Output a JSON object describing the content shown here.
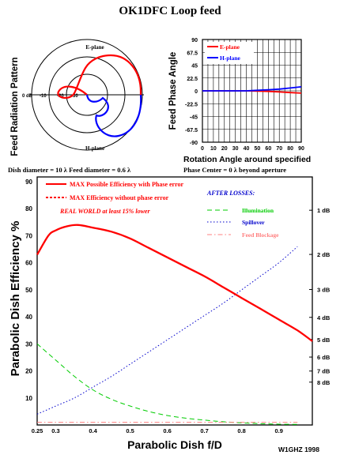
{
  "title": "OK1DFC Loop feed",
  "polar": {
    "ylabel": "Feed Radiation Pattern",
    "e_label": "E-plane",
    "h_label": "H-plane",
    "ring_labels": [
      "0 dB",
      "-10",
      "-20",
      "-30"
    ],
    "caption": "Dish diameter = 10 λ    Feed diameter = 0.6 λ"
  },
  "phase": {
    "ylabel": "Feed Phase Angle",
    "xlabel": "Rotation Angle around specified",
    "caption": "Phase Center = 0 λ beyond aperture",
    "y_ticks": [
      "90",
      "67.5",
      "45",
      "22.5",
      "0",
      "-22.5",
      "-45",
      "-67.5",
      "-90"
    ],
    "x_ticks": [
      "0",
      "10",
      "20",
      "30",
      "40",
      "50",
      "60",
      "70",
      "80",
      "90"
    ],
    "legend": [
      "E-plane",
      "H-plane"
    ]
  },
  "main": {
    "legend_max": "MAX Possible Efficiency with Phase error",
    "legend_max_nophase": "MAX Efficiency without phase error",
    "real_world": "REAL WORLD at least 15% lower",
    "after_losses": "AFTER LOSSES:",
    "losses": [
      "Illumination",
      "Spillover",
      "Feed Blockage"
    ],
    "ylabel": "Parabolic Dish Efficiency %",
    "xlabel": "Parabolic Dish f/D",
    "credit": "W1GHZ 1998",
    "y_ticks": [
      "90",
      "80",
      "70",
      "60",
      "50",
      "40",
      "30",
      "20",
      "10"
    ],
    "x_ticks": [
      "0.25",
      "0.3",
      "0.4",
      "0.5",
      "0.6",
      "0.7",
      "0.8",
      "0.9"
    ],
    "db_ticks": [
      "1 dB",
      "2 dB",
      "3 dB",
      "4 dB",
      "5 dB",
      "6 dB",
      "7 dB",
      "8 dB"
    ]
  },
  "colors": {
    "max": "#ff0000",
    "illumination": "#00cc00",
    "spillover": "#0000cc",
    "blockage": "#ff8080",
    "eplane": "#ff0000",
    "hplane": "#0000ff"
  },
  "chart_data": [
    {
      "type": "line",
      "title": "Feed Radiation Pattern",
      "polar": true,
      "series": [
        {
          "name": "E-plane",
          "angle_deg": [
            0,
            30,
            60,
            90,
            120,
            150,
            180
          ],
          "db": [
            0,
            -2,
            -6,
            -11,
            -17,
            -24,
            -30
          ]
        },
        {
          "name": "H-plane",
          "angle_deg": [
            0,
            30,
            60,
            90,
            120,
            150,
            180
          ],
          "db": [
            0,
            -1,
            -4,
            -9,
            -16,
            -23,
            -30
          ]
        }
      ]
    },
    {
      "type": "line",
      "title": "Feed Phase Angle",
      "xlabel": "Rotation Angle around specified",
      "ylabel": "Feed Phase Angle",
      "xlim": [
        0,
        90
      ],
      "ylim": [
        -90,
        90
      ],
      "series": [
        {
          "name": "E-plane",
          "x": [
            0,
            10,
            20,
            30,
            40,
            50,
            60,
            70,
            80,
            90
          ],
          "y": [
            0,
            0,
            0,
            0,
            0,
            -0.5,
            -1,
            -2,
            -3,
            -4
          ]
        },
        {
          "name": "H-plane",
          "x": [
            0,
            10,
            20,
            30,
            40,
            50,
            60,
            70,
            80,
            90
          ],
          "y": [
            0,
            0,
            0,
            0,
            0,
            1,
            2,
            3,
            5,
            7
          ]
        }
      ]
    },
    {
      "type": "line",
      "title": "",
      "xlabel": "Parabolic Dish f/D",
      "ylabel": "Parabolic Dish Efficiency %",
      "xlim": [
        0.25,
        0.99
      ],
      "ylim": [
        0,
        90
      ],
      "series": [
        {
          "name": "MAX Possible Efficiency with Phase error",
          "x": [
            0.25,
            0.28,
            0.3,
            0.33,
            0.36,
            0.4,
            0.45,
            0.5,
            0.55,
            0.6,
            0.65,
            0.7,
            0.75,
            0.8,
            0.85,
            0.9,
            0.95,
            0.99
          ],
          "y": [
            63,
            70,
            72,
            73.5,
            74,
            73,
            71.5,
            69,
            65.5,
            62,
            58.5,
            55,
            51,
            47,
            43,
            39,
            35,
            31
          ]
        },
        {
          "name": "Illumination",
          "x": [
            0.25,
            0.3,
            0.35,
            0.4,
            0.45,
            0.5,
            0.55,
            0.6,
            0.65,
            0.7,
            0.75,
            0.8,
            0.85,
            0.9,
            0.95
          ],
          "y": [
            30,
            24,
            18,
            13,
            9.5,
            7,
            5,
            3.5,
            2.5,
            1.8,
            1.2,
            0.8,
            0.5,
            0.3,
            0.2
          ]
        },
        {
          "name": "Spillover",
          "x": [
            0.25,
            0.3,
            0.35,
            0.4,
            0.45,
            0.5,
            0.55,
            0.6,
            0.65,
            0.7,
            0.75,
            0.8,
            0.85,
            0.9,
            0.95
          ],
          "y": [
            4,
            7,
            10,
            14,
            18,
            22.5,
            27,
            31.5,
            36,
            40.5,
            45,
            50,
            55,
            60,
            66
          ]
        },
        {
          "name": "Feed Blockage",
          "x": [
            0.25,
            0.4,
            0.6,
            0.8,
            0.95
          ],
          "y": [
            1,
            1,
            1,
            1,
            1
          ]
        }
      ]
    }
  ]
}
